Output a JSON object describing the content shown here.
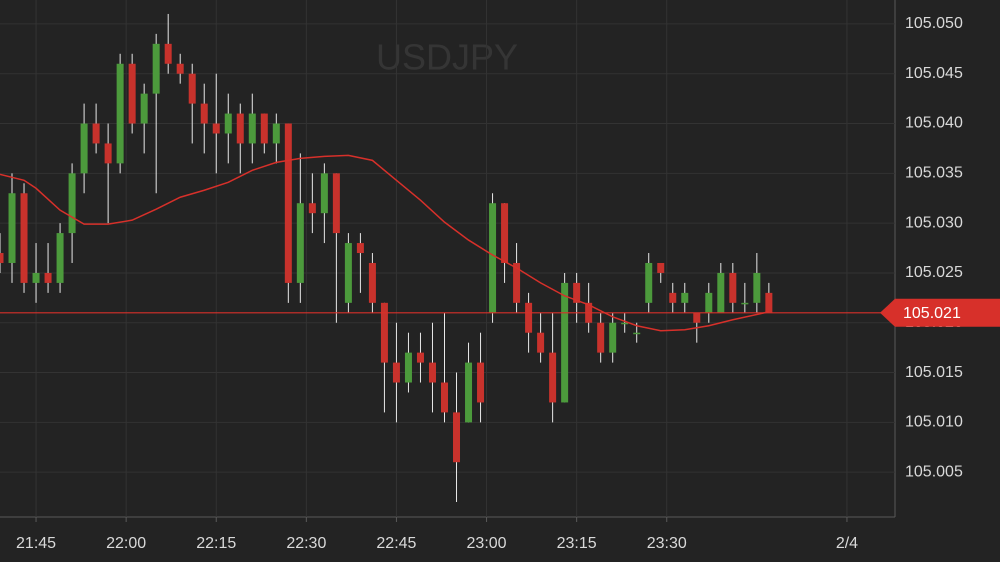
{
  "chart_data": {
    "type": "candlestick",
    "title": "USDJPY",
    "x": [
      "21:39",
      "21:41",
      "21:43",
      "21:45",
      "21:47",
      "21:49",
      "21:51",
      "21:53",
      "21:55",
      "21:57",
      "21:59",
      "22:01",
      "22:03",
      "22:05",
      "22:07",
      "22:09",
      "22:11",
      "22:13",
      "22:15",
      "22:17",
      "22:19",
      "22:21",
      "22:23",
      "22:25",
      "22:27",
      "22:29",
      "22:31",
      "22:33",
      "22:35",
      "22:37",
      "22:39",
      "22:41",
      "22:43",
      "22:45",
      "22:47",
      "22:49",
      "22:51",
      "22:53",
      "22:55",
      "22:57",
      "22:59",
      "23:01",
      "23:03",
      "23:05",
      "23:07",
      "23:09",
      "23:11",
      "23:13",
      "23:15",
      "23:17",
      "23:19",
      "23:21",
      "23:23",
      "23:25",
      "23:27",
      "23:29",
      "23:31",
      "23:33",
      "23:35",
      "23:37",
      "23:39",
      "23:41",
      "23:43",
      "23:45",
      "23:47"
    ],
    "open": [
      105.027,
      105.026,
      105.033,
      105.024,
      105.025,
      105.024,
      105.029,
      105.035,
      105.04,
      105.038,
      105.036,
      105.046,
      105.04,
      105.043,
      105.048,
      105.046,
      105.045,
      105.042,
      105.04,
      105.039,
      105.041,
      105.038,
      105.041,
      105.038,
      105.04,
      105.024,
      105.032,
      105.031,
      105.035,
      105.022,
      105.028,
      105.026,
      105.022,
      105.016,
      105.014,
      105.017,
      105.016,
      105.014,
      105.011,
      105.01,
      105.016,
      105.021,
      105.032,
      105.026,
      105.022,
      105.019,
      105.017,
      105.012,
      105.024,
      105.022,
      105.02,
      105.017,
      105.02,
      105.019,
      105.022,
      105.026,
      105.023,
      105.022,
      105.021,
      105.021,
      105.021,
      105.025,
      105.022,
      105.022,
      105.023
    ],
    "high": [
      105.029,
      105.035,
      105.034,
      105.028,
      105.028,
      105.03,
      105.036,
      105.042,
      105.042,
      105.04,
      105.047,
      105.047,
      105.044,
      105.049,
      105.051,
      105.047,
      105.046,
      105.044,
      105.045,
      105.043,
      105.042,
      105.043,
      105.041,
      105.041,
      105.04,
      105.037,
      105.035,
      105.036,
      105.035,
      105.029,
      105.029,
      105.027,
      105.022,
      105.02,
      105.019,
      105.019,
      105.02,
      105.021,
      105.015,
      105.018,
      105.019,
      105.033,
      105.032,
      105.028,
      105.023,
      105.021,
      105.021,
      105.025,
      105.025,
      105.024,
      105.021,
      105.021,
      105.021,
      105.02,
      105.027,
      105.026,
      105.024,
      105.024,
      105.021,
      105.024,
      105.026,
      105.026,
      105.024,
      105.027,
      105.024
    ],
    "low": [
      105.025,
      105.024,
      105.023,
      105.022,
      105.023,
      105.023,
      105.026,
      105.033,
      105.037,
      105.03,
      105.035,
      105.039,
      105.037,
      105.033,
      105.045,
      105.044,
      105.038,
      105.037,
      105.035,
      105.036,
      105.035,
      105.036,
      105.037,
      105.036,
      105.022,
      105.022,
      105.029,
      105.028,
      105.02,
      105.021,
      105.023,
      105.021,
      105.011,
      105.01,
      105.013,
      105.014,
      105.011,
      105.01,
      105.002,
      105.01,
      105.01,
      105.02,
      105.024,
      105.021,
      105.017,
      105.016,
      105.01,
      105.012,
      105.02,
      105.019,
      105.016,
      105.016,
      105.019,
      105.018,
      105.021,
      105.024,
      105.021,
      105.021,
      105.018,
      105.02,
      105.021,
      105.021,
      105.021,
      105.021,
      105.021
    ],
    "close": [
      105.026,
      105.033,
      105.024,
      105.025,
      105.024,
      105.029,
      105.035,
      105.04,
      105.038,
      105.036,
      105.046,
      105.04,
      105.043,
      105.048,
      105.046,
      105.045,
      105.042,
      105.04,
      105.039,
      105.041,
      105.038,
      105.041,
      105.038,
      105.04,
      105.024,
      105.032,
      105.031,
      105.035,
      105.029,
      105.028,
      105.027,
      105.022,
      105.016,
      105.014,
      105.017,
      105.016,
      105.014,
      105.011,
      105.006,
      105.016,
      105.012,
      105.032,
      105.026,
      105.022,
      105.019,
      105.017,
      105.012,
      105.024,
      105.022,
      105.02,
      105.017,
      105.02,
      105.02,
      105.019,
      105.026,
      105.025,
      105.022,
      105.023,
      105.02,
      105.023,
      105.025,
      105.022,
      105.022,
      105.025,
      105.021
    ],
    "up_color": "#4c9a3c",
    "down_color": "#c8322c",
    "moving_average": {
      "color": "#d7302a",
      "x": [
        "21:39",
        "21:43",
        "21:45",
        "21:49",
        "21:53",
        "21:57",
        "22:01",
        "22:05",
        "22:09",
        "22:13",
        "22:17",
        "22:21",
        "22:25",
        "22:29",
        "22:33",
        "22:37",
        "22:41",
        "22:45",
        "22:49",
        "22:53",
        "22:57",
        "23:01",
        "23:05",
        "23:09",
        "23:13",
        "23:17",
        "23:21",
        "23:25",
        "23:29",
        "23:33",
        "23:37",
        "23:41",
        "23:47"
      ],
      "values": [
        105.0349,
        105.0343,
        105.0335,
        105.0313,
        105.0299,
        105.0299,
        105.0303,
        105.0314,
        105.0326,
        105.0333,
        105.0341,
        105.0353,
        105.0361,
        105.0365,
        105.0367,
        105.0368,
        105.0363,
        105.0343,
        105.0323,
        105.0301,
        105.0283,
        105.0268,
        105.0255,
        105.024,
        105.0227,
        105.0218,
        105.0206,
        105.0197,
        105.0192,
        105.0193,
        105.0197,
        105.0203,
        105.0211
      ]
    },
    "last_price": 105.021,
    "last_price_color": "#d7302a",
    "xlim": [
      "21:39",
      "00:08"
    ],
    "xticks": [
      "21:45",
      "22:00",
      "22:15",
      "22:30",
      "22:45",
      "23:00",
      "23:15",
      "23:30",
      {
        "value": "00:00",
        "label": "2/4"
      }
    ],
    "ylim": [
      105.0005,
      105.0524
    ],
    "yticks": [
      {
        "value": 105.005,
        "label": "105.005"
      },
      {
        "value": 105.01,
        "label": "105.010"
      },
      {
        "value": 105.015,
        "label": "105.015"
      },
      {
        "value": 105.02,
        "label": "105.020"
      },
      {
        "value": 105.025,
        "label": "105.025"
      },
      {
        "value": 105.03,
        "label": "105.030"
      },
      {
        "value": 105.035,
        "label": "105.035"
      },
      {
        "value": 105.04,
        "label": "105.040"
      },
      {
        "value": 105.045,
        "label": "105.045"
      },
      {
        "value": 105.05,
        "label": "105.050"
      }
    ],
    "grid": true
  }
}
